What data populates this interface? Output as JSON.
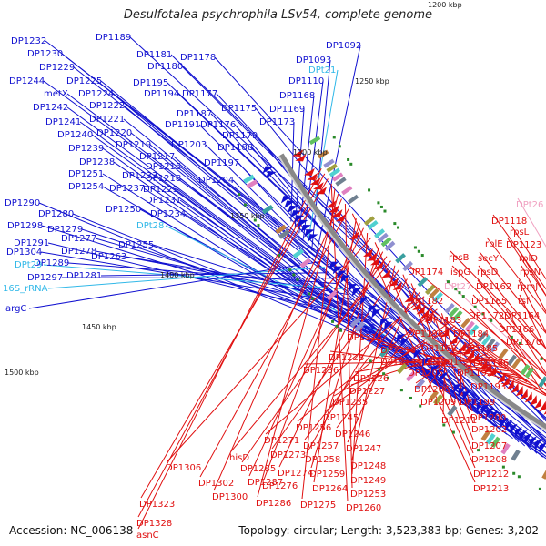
{
  "title": "Desulfotalea psychrophila LSv54, complete genome",
  "footer": {
    "accession": "Accession: NC_006138",
    "summary": "Topology: circular; Length: 3,523,383 bp; Genes: 3,202"
  },
  "colors": {
    "forward": "#1010d0",
    "reverse": "#e01010",
    "rna": "#30b8e8",
    "pseudo": "#f0a0c0",
    "backbone": "#888888",
    "tick": "#2a8a2a"
  },
  "scale_labels": [
    "1200 kbp",
    "1250 kbp",
    "1300 kbp",
    "1350 kbp",
    "1400 kbp",
    "1450 kbp",
    "1500 kbp"
  ],
  "left_labels": [
    {
      "text": "DP1232",
      "kind": "forward"
    },
    {
      "text": "DP1189",
      "kind": "forward"
    },
    {
      "text": "DP1230",
      "kind": "forward"
    },
    {
      "text": "DP1181",
      "kind": "forward"
    },
    {
      "text": "DP1229",
      "kind": "forward"
    },
    {
      "text": "DP1180",
      "kind": "forward"
    },
    {
      "text": "DP1178",
      "kind": "forward"
    },
    {
      "text": "DP1244",
      "kind": "forward"
    },
    {
      "text": "DP1225",
      "kind": "forward"
    },
    {
      "text": "DP1195",
      "kind": "forward"
    },
    {
      "text": "DP1194",
      "kind": "forward"
    },
    {
      "text": "DP1177",
      "kind": "forward"
    },
    {
      "text": "metX",
      "kind": "forward"
    },
    {
      "text": "DP1224",
      "kind": "forward"
    },
    {
      "text": "DP1242",
      "kind": "forward"
    },
    {
      "text": "DP1222",
      "kind": "forward"
    },
    {
      "text": "DP1241",
      "kind": "forward"
    },
    {
      "text": "DP1221",
      "kind": "forward"
    },
    {
      "text": "DP1187",
      "kind": "forward"
    },
    {
      "text": "DP1175",
      "kind": "forward"
    },
    {
      "text": "DP1191",
      "kind": "forward"
    },
    {
      "text": "DP1176",
      "kind": "forward"
    },
    {
      "text": "DP1240",
      "kind": "forward"
    },
    {
      "text": "DP1220",
      "kind": "forward"
    },
    {
      "text": "DP1179",
      "kind": "forward"
    },
    {
      "text": "DP1219",
      "kind": "forward"
    },
    {
      "text": "DP1203",
      "kind": "forward"
    },
    {
      "text": "DP1188",
      "kind": "forward"
    },
    {
      "text": "DP1239",
      "kind": "forward"
    },
    {
      "text": "DP1217",
      "kind": "forward"
    },
    {
      "text": "DP1238",
      "kind": "forward"
    },
    {
      "text": "DP1197",
      "kind": "forward"
    },
    {
      "text": "DP1216",
      "kind": "forward"
    },
    {
      "text": "DP1251",
      "kind": "forward"
    },
    {
      "text": "DP1233",
      "kind": "forward"
    },
    {
      "text": "DP1218",
      "kind": "forward"
    },
    {
      "text": "DP1204",
      "kind": "forward"
    },
    {
      "text": "DP1254",
      "kind": "forward"
    },
    {
      "text": "DP1237",
      "kind": "forward"
    },
    {
      "text": "DP1223",
      "kind": "forward"
    },
    {
      "text": "DP1231",
      "kind": "forward"
    },
    {
      "text": "DP1290",
      "kind": "forward"
    },
    {
      "text": "DP1250",
      "kind": "forward"
    },
    {
      "text": "DP1234",
      "kind": "forward"
    },
    {
      "text": "DP1280",
      "kind": "forward"
    },
    {
      "text": "DPt28",
      "kind": "rna"
    },
    {
      "text": "DP1298",
      "kind": "forward"
    },
    {
      "text": "DP1279",
      "kind": "forward"
    },
    {
      "text": "DP1291",
      "kind": "forward"
    },
    {
      "text": "DP1277",
      "kind": "forward"
    },
    {
      "text": "DP1255",
      "kind": "forward"
    },
    {
      "text": "DP1304",
      "kind": "forward"
    },
    {
      "text": "DP1278",
      "kind": "forward"
    },
    {
      "text": "DP1263",
      "kind": "forward"
    },
    {
      "text": "DPt29",
      "kind": "rna"
    },
    {
      "text": "DP1289",
      "kind": "forward"
    },
    {
      "text": "DP1297",
      "kind": "forward"
    },
    {
      "text": "DP1281",
      "kind": "forward"
    },
    {
      "text": "16S_rRNA",
      "kind": "rna"
    },
    {
      "text": "argC",
      "kind": "forward"
    },
    {
      "text": "DP1092",
      "kind": "forward"
    },
    {
      "text": "DP1093",
      "kind": "forward"
    },
    {
      "text": "DPt21",
      "kind": "rna"
    },
    {
      "text": "DP1110",
      "kind": "forward"
    },
    {
      "text": "DP1168",
      "kind": "forward"
    },
    {
      "text": "DP1169",
      "kind": "forward"
    },
    {
      "text": "DP1173",
      "kind": "forward"
    }
  ],
  "right_labels": [
    {
      "text": "DPt26",
      "kind": "pseudo"
    },
    {
      "text": "DP1118",
      "kind": "reverse"
    },
    {
      "text": "rpsL",
      "kind": "reverse"
    },
    {
      "text": "rplE",
      "kind": "reverse"
    },
    {
      "text": "DP1123",
      "kind": "reverse"
    },
    {
      "text": "rpsB",
      "kind": "reverse"
    },
    {
      "text": "secY",
      "kind": "reverse"
    },
    {
      "text": "rplD",
      "kind": "reverse"
    },
    {
      "text": "DP1174",
      "kind": "reverse"
    },
    {
      "text": "ispG",
      "kind": "reverse"
    },
    {
      "text": "rpsD",
      "kind": "reverse"
    },
    {
      "text": "rpsN",
      "kind": "reverse"
    },
    {
      "text": "DPt27",
      "kind": "pseudo"
    },
    {
      "text": "DP1162",
      "kind": "reverse"
    },
    {
      "text": "rpmJ",
      "kind": "reverse"
    },
    {
      "text": "DP1182",
      "kind": "reverse"
    },
    {
      "text": "DP1165",
      "kind": "reverse"
    },
    {
      "text": "tsf",
      "kind": "reverse"
    },
    {
      "text": "DP1172",
      "kind": "reverse"
    },
    {
      "text": "DP1164",
      "kind": "reverse"
    },
    {
      "text": "DP1183",
      "kind": "reverse"
    },
    {
      "text": "DP1166",
      "kind": "reverse"
    },
    {
      "text": "DP1196",
      "kind": "reverse"
    },
    {
      "text": "DP1184",
      "kind": "reverse"
    },
    {
      "text": "DP1170",
      "kind": "reverse"
    },
    {
      "text": "DP1215",
      "kind": "reverse"
    },
    {
      "text": "DP1198",
      "kind": "reverse"
    },
    {
      "text": "DP1185",
      "kind": "reverse"
    },
    {
      "text": "DP1210",
      "kind": "reverse"
    },
    {
      "text": "DP1228",
      "kind": "reverse"
    },
    {
      "text": "DP1214",
      "kind": "reverse"
    },
    {
      "text": "DP1201",
      "kind": "reverse"
    },
    {
      "text": "DP1186",
      "kind": "reverse"
    },
    {
      "text": "DP1236",
      "kind": "reverse"
    },
    {
      "text": "DP1205",
      "kind": "reverse"
    },
    {
      "text": "DP1192",
      "kind": "reverse"
    },
    {
      "text": "DP1226",
      "kind": "reverse"
    },
    {
      "text": "DP1227",
      "kind": "reverse"
    },
    {
      "text": "DP1206",
      "kind": "reverse"
    },
    {
      "text": "DP1193",
      "kind": "reverse"
    },
    {
      "text": "DP1209",
      "kind": "reverse"
    },
    {
      "text": "DP1199",
      "kind": "reverse"
    },
    {
      "text": "DP1235",
      "kind": "reverse"
    },
    {
      "text": "DP1245",
      "kind": "reverse"
    },
    {
      "text": "DP1211",
      "kind": "reverse"
    },
    {
      "text": "DP1200",
      "kind": "reverse"
    },
    {
      "text": "DP1256",
      "kind": "reverse"
    },
    {
      "text": "DP1246",
      "kind": "reverse"
    },
    {
      "text": "DP1202",
      "kind": "reverse"
    },
    {
      "text": "DP1271",
      "kind": "reverse"
    },
    {
      "text": "DP1257",
      "kind": "reverse"
    },
    {
      "text": "DP1247",
      "kind": "reverse"
    },
    {
      "text": "DP1207",
      "kind": "reverse"
    },
    {
      "text": "DP1258",
      "kind": "reverse"
    },
    {
      "text": "DP1208",
      "kind": "reverse"
    },
    {
      "text": "DP1273",
      "kind": "reverse"
    },
    {
      "text": "DP1248",
      "kind": "reverse"
    },
    {
      "text": "hisD",
      "kind": "reverse"
    },
    {
      "text": "DP1285",
      "kind": "reverse"
    },
    {
      "text": "DP1274",
      "kind": "reverse"
    },
    {
      "text": "DP1259",
      "kind": "reverse"
    },
    {
      "text": "DP1212",
      "kind": "reverse"
    },
    {
      "text": "DP1306",
      "kind": "reverse"
    },
    {
      "text": "DP1249",
      "kind": "reverse"
    },
    {
      "text": "DP1287",
      "kind": "reverse"
    },
    {
      "text": "DP1276",
      "kind": "reverse"
    },
    {
      "text": "DP1264",
      "kind": "reverse"
    },
    {
      "text": "DP1213",
      "kind": "reverse"
    },
    {
      "text": "DP1302",
      "kind": "reverse"
    },
    {
      "text": "DP1253",
      "kind": "reverse"
    },
    {
      "text": "DP1300",
      "kind": "reverse"
    },
    {
      "text": "DP1286",
      "kind": "reverse"
    },
    {
      "text": "DP1275",
      "kind": "reverse"
    },
    {
      "text": "DP1260",
      "kind": "reverse"
    },
    {
      "text": "DP1323",
      "kind": "reverse"
    },
    {
      "text": "DP1328",
      "kind": "reverse"
    },
    {
      "text": "asnC",
      "kind": "reverse"
    }
  ]
}
